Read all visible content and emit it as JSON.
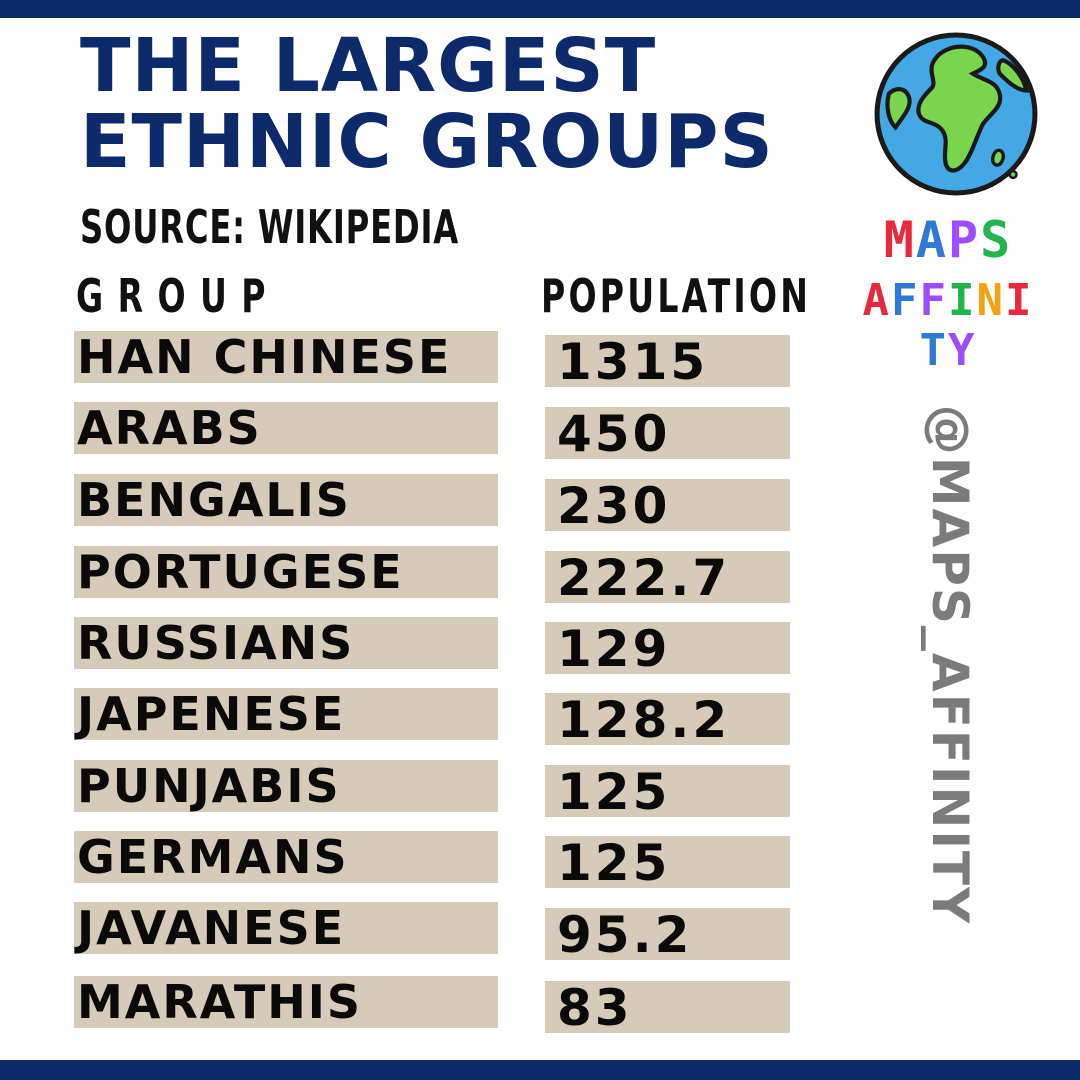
{
  "colors": {
    "navy": "#0d2a6b",
    "row_bg": "#d5cbb8",
    "handle_gray": "#7b7b7b",
    "logo": [
      "#e8283c",
      "#2f78d6",
      "#9b4dff",
      "#23b44d",
      "#f2a30f"
    ]
  },
  "title": {
    "line1": "THE LARGEST",
    "line2": "ETHNIC GROUPS"
  },
  "source": "SOURCE: WIKIPEDIA",
  "columns": {
    "group": "GROUP",
    "population": "POPULATION"
  },
  "rows": [
    {
      "group": "HAN CHINESE",
      "population": "1315"
    },
    {
      "group": "ARABS",
      "population": "450"
    },
    {
      "group": "BENGALIS",
      "population": "230"
    },
    {
      "group": "PORTUGESE",
      "population": "222.7"
    },
    {
      "group": "RUSSIANS",
      "population": "129"
    },
    {
      "group": "JAPENESE",
      "population": "128.2"
    },
    {
      "group": "PUNJABIS",
      "population": "125"
    },
    {
      "group": "GERMANS",
      "population": "125"
    },
    {
      "group": "JAVANESE",
      "population": "95.2"
    },
    {
      "group": "MARATHIS",
      "population": "83"
    }
  ],
  "logo": {
    "icon": "globe-icon",
    "line1": "MAPS",
    "line2": "AFFINITY"
  },
  "handle": "@MAPS_AFFINITY"
}
